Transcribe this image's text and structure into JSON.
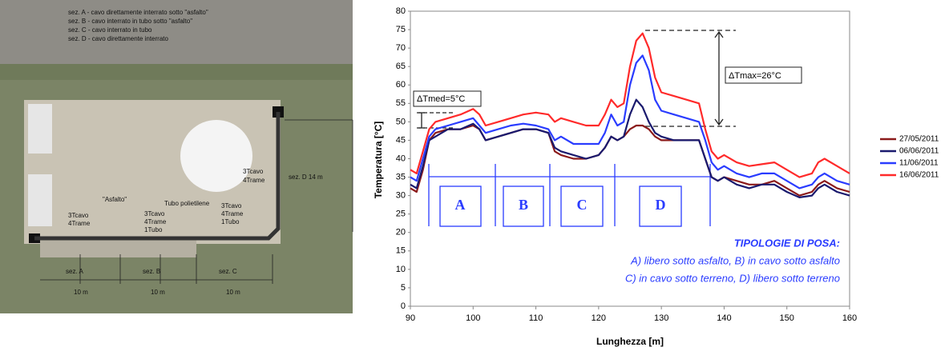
{
  "photo": {
    "legend_lines": [
      "sez. A - cavo direttamente interrato sotto \"asfalto\"",
      "sez. B - cavo interrato in tubo sotto \"asfalto\"",
      "sez. C - cavo interrato in tubo",
      "sez. D - cavo direttamente interrato"
    ],
    "labels": [
      "\"Asfalto\"",
      "Tubo polietilene",
      "3Tcavo",
      "4Trame",
      "3Tcavo",
      "4Trame",
      "1Tubo",
      "3Tcavo",
      "4Trame",
      "1Tubo",
      "3Tcavo",
      "4Trame",
      "sez. D  14 m",
      "sez. A",
      "sez. B",
      "sez. C",
      "10 m",
      "10 m",
      "10 m"
    ]
  },
  "chart_data": {
    "type": "line",
    "xlabel": "Lunghezza [m]",
    "ylabel": "Temperatura [°C]",
    "x": [
      90,
      91,
      92,
      93,
      94,
      96,
      98,
      100,
      101,
      102,
      104,
      106,
      108,
      110,
      112,
      113,
      114,
      116,
      118,
      120,
      121,
      122,
      123,
      124,
      125,
      126,
      127,
      128,
      129,
      130,
      132,
      134,
      136,
      137,
      138,
      139,
      140,
      142,
      144,
      146,
      148,
      150,
      152,
      154,
      155,
      156,
      158,
      160
    ],
    "series": [
      {
        "name": "27/05/2011",
        "color": "#8b1a1a",
        "values": [
          32,
          31,
          37,
          45,
          47,
          48,
          48,
          49,
          48,
          45,
          46,
          47,
          48,
          48,
          47,
          42,
          41,
          40,
          40,
          41,
          43,
          46,
          45,
          46,
          48,
          49,
          49,
          48,
          46,
          45,
          45,
          45,
          45,
          40,
          35,
          34,
          35,
          34,
          33,
          33,
          34,
          32,
          30,
          31,
          33,
          34,
          32,
          31
        ]
      },
      {
        "name": "06/06/2011",
        "color": "#1a1a6e",
        "values": [
          33,
          32,
          38,
          45,
          46,
          48,
          48,
          49.5,
          48,
          45,
          46,
          47,
          48,
          48,
          47,
          43,
          42,
          41,
          40,
          41,
          43,
          46,
          45,
          46,
          52,
          56,
          54,
          50,
          47,
          46,
          45,
          45,
          45,
          40,
          35,
          34,
          35,
          33,
          32,
          33,
          33,
          31,
          29.5,
          30,
          32,
          33,
          31,
          30
        ]
      },
      {
        "name": "11/06/2011",
        "color": "#2a3cff",
        "values": [
          35,
          34,
          40,
          46,
          48,
          49,
          50,
          51,
          49,
          47,
          48,
          49,
          49.5,
          49,
          48,
          45,
          46,
          44,
          44,
          44,
          47,
          52,
          49,
          50,
          60,
          66,
          68,
          64,
          56,
          53,
          52,
          51,
          50,
          45,
          39,
          37,
          38,
          36,
          35,
          36,
          36,
          34,
          32,
          33,
          35,
          36,
          34,
          33
        ]
      },
      {
        "name": "16/06/2011",
        "color": "#ff2a2a",
        "values": [
          37,
          36,
          42,
          48,
          50,
          51,
          52,
          53.5,
          52,
          49,
          50,
          51,
          52,
          52.5,
          52,
          50,
          51,
          50,
          49,
          49,
          52,
          56,
          54,
          55,
          65,
          72,
          74,
          70,
          62,
          58,
          57,
          56,
          55,
          48,
          42,
          40,
          41,
          39,
          38,
          38.5,
          39,
          37,
          35,
          36,
          39,
          40,
          38,
          36
        ]
      }
    ],
    "xlim": [
      90,
      160
    ],
    "xticks": [
      90,
      100,
      110,
      120,
      130,
      140,
      150,
      160
    ],
    "ylim": [
      0,
      80
    ],
    "yticks": [
      0,
      5,
      10,
      15,
      20,
      25,
      30,
      35,
      40,
      45,
      50,
      55,
      60,
      65,
      70,
      75,
      80
    ],
    "grid": false,
    "annotations": [
      "ΔTmed=5°C",
      "ΔTmax=26°C"
    ],
    "section_labels": [
      "A",
      "B",
      "C",
      "D"
    ],
    "notes": [
      "TIPOLOGIE DI POSA:",
      "A) libero sotto asfalto, B) in cavo sotto asfalto",
      "C) in cavo sotto terreno, D) libero sotto terreno"
    ]
  }
}
